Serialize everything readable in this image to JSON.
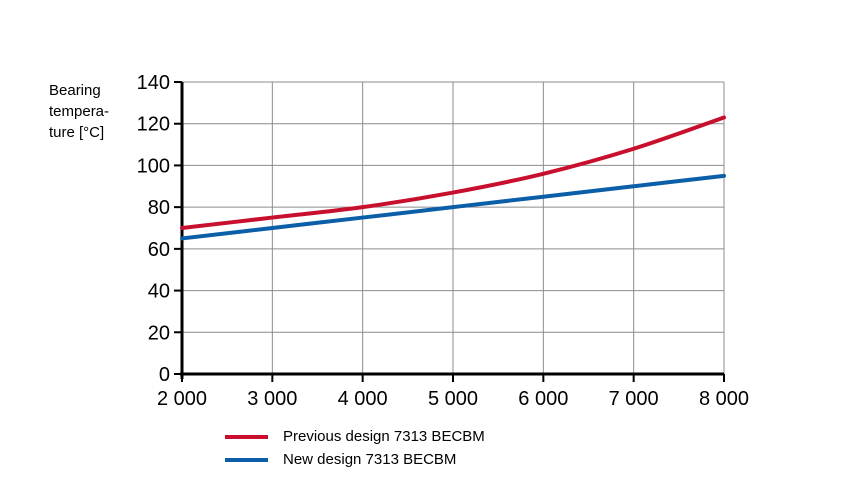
{
  "chart_data": {
    "type": "line",
    "title": "",
    "xlabel": "",
    "ylabel_lines": [
      "Bearing",
      "tempera-",
      "ture [°C]"
    ],
    "x": [
      2000,
      3000,
      4000,
      5000,
      6000,
      7000,
      8000
    ],
    "x_tick_labels": [
      "2 000",
      "3 000",
      "4 000",
      "5 000",
      "6 000",
      "7 000",
      "8 000"
    ],
    "y_tick_labels": [
      "0",
      "20",
      "40",
      "60",
      "80",
      "100",
      "120",
      "140"
    ],
    "xlim": [
      2000,
      8000
    ],
    "ylim": [
      0,
      140
    ],
    "grid": true,
    "legend_position": "bottom-left",
    "series": [
      {
        "name": "Previous design 7313 BECBM",
        "color": "#c8102e",
        "values": [
          70,
          75,
          80,
          87,
          96,
          108,
          123
        ]
      },
      {
        "name": "New design 7313 BECBM",
        "color": "#0a5fa8",
        "values": [
          65,
          70,
          75,
          80,
          85,
          90,
          95
        ]
      }
    ]
  }
}
